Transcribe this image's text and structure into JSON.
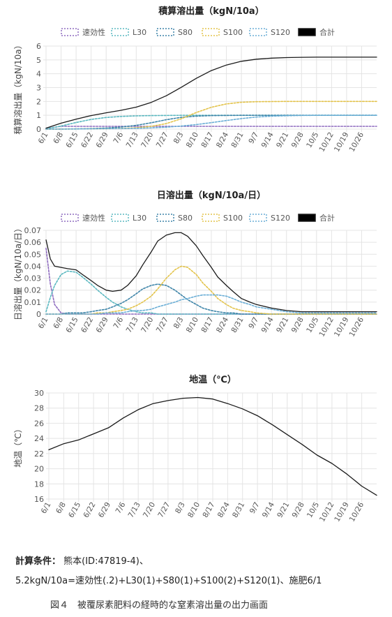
{
  "colors": {
    "速効性": "#8e6bbf",
    "L30": "#5ab8c0",
    "S80": "#3d84a8",
    "S100": "#e3c34a",
    "S120": "#6aaed6",
    "合計": "#1a1a1a",
    "grid": "#e4e4e4",
    "axis_text": "#555555"
  },
  "chart_data": [
    {
      "type": "line",
      "title": "積算溶出量（kgN/10a）",
      "ylabel": "積算溶出量（kgN/10a）",
      "ylim": [
        0,
        6
      ],
      "yticks": [
        "0",
        "1",
        "2",
        "3",
        "4",
        "5",
        "6"
      ],
      "categories": [
        "6/1",
        "6/8",
        "6/15",
        "6/22",
        "6/29",
        "7/6",
        "7/13",
        "7/20",
        "7/27",
        "8/3",
        "8/10",
        "8/17",
        "8/24",
        "8/31",
        "9/7",
        "9/14",
        "9/21",
        "9/28",
        "10/5",
        "10/12",
        "10/19",
        "10/26"
      ],
      "legend": [
        "速効性",
        "L30",
        "S80",
        "S100",
        "S120",
        "合計"
      ],
      "x": [
        0,
        7,
        14,
        21,
        28,
        35,
        42,
        49,
        56,
        63,
        70,
        77,
        84,
        91,
        98,
        105,
        112,
        119,
        126,
        133,
        140,
        147,
        154
      ],
      "series": [
        {
          "name": "速効性",
          "values": [
            0.05,
            0.2,
            0.2,
            0.2,
            0.2,
            0.2,
            0.2,
            0.2,
            0.2,
            0.2,
            0.2,
            0.2,
            0.2,
            0.2,
            0.2,
            0.2,
            0.2,
            0.2,
            0.2,
            0.2,
            0.2,
            0.2,
            0.2
          ]
        },
        {
          "name": "L30",
          "values": [
            0.02,
            0.22,
            0.48,
            0.7,
            0.84,
            0.92,
            0.96,
            0.98,
            0.99,
            1.0,
            1.0,
            1.0,
            1.0,
            1.0,
            1.0,
            1.0,
            1.0,
            1.0,
            1.0,
            1.0,
            1.0,
            1.0,
            1.0
          ]
        },
        {
          "name": "S80",
          "values": [
            0,
            0.01,
            0.02,
            0.04,
            0.08,
            0.15,
            0.27,
            0.46,
            0.68,
            0.85,
            0.94,
            0.98,
            0.99,
            1.0,
            1.0,
            1.0,
            1.0,
            1.0,
            1.0,
            1.0,
            1.0,
            1.0,
            1.0
          ]
        },
        {
          "name": "S100",
          "values": [
            0,
            0,
            0.01,
            0.02,
            0.03,
            0.05,
            0.1,
            0.2,
            0.4,
            0.75,
            1.2,
            1.58,
            1.82,
            1.94,
            1.98,
            1.99,
            2.0,
            2.0,
            2.0,
            2.0,
            2.0,
            2.0,
            2.0
          ]
        },
        {
          "name": "S120",
          "values": [
            0,
            0,
            0.01,
            0.02,
            0.03,
            0.04,
            0.06,
            0.09,
            0.14,
            0.22,
            0.33,
            0.47,
            0.62,
            0.76,
            0.87,
            0.94,
            0.97,
            0.99,
            1.0,
            1.0,
            1.0,
            1.0,
            1.0
          ]
        },
        {
          "name": "合計",
          "values": [
            0.07,
            0.43,
            0.72,
            0.98,
            1.18,
            1.36,
            1.59,
            1.93,
            2.41,
            3.02,
            3.67,
            4.23,
            4.63,
            4.9,
            5.05,
            5.13,
            5.17,
            5.19,
            5.2,
            5.2,
            5.2,
            5.2,
            5.2
          ]
        }
      ]
    },
    {
      "type": "line",
      "title": "日溶出量（kgN/10a/日）",
      "ylabel": "日溶出量（kgN/10a/日）",
      "ylim": [
        0,
        0.07
      ],
      "yticks": [
        "0",
        "0.01",
        "0.02",
        "0.03",
        "0.04",
        "0.05",
        "0.06",
        "0.07"
      ],
      "categories": [
        "6/1",
        "6/8",
        "6/15",
        "6/22",
        "6/29",
        "7/6",
        "7/13",
        "7/20",
        "7/27",
        "8/3",
        "8/10",
        "8/17",
        "8/24",
        "8/31",
        "9/7",
        "9/14",
        "9/21",
        "9/28",
        "10/5",
        "10/12",
        "10/19",
        "10/26"
      ],
      "legend": [
        "速効性",
        "L30",
        "S80",
        "S100",
        "S120",
        "合計"
      ],
      "x": [
        0,
        2,
        4,
        7,
        10,
        14,
        17,
        21,
        24,
        28,
        31,
        35,
        38,
        42,
        45,
        49,
        52,
        56,
        60,
        63,
        66,
        70,
        73,
        77,
        80,
        84,
        87,
        91,
        95,
        98,
        105,
        112,
        119,
        126,
        133,
        140,
        147,
        154
      ],
      "series": [
        {
          "name": "速効性",
          "values": [
            0.055,
            0.025,
            0.008,
            0.001,
            0,
            0,
            0,
            0,
            0,
            0,
            0,
            0,
            0,
            0,
            0,
            0,
            0,
            0,
            0,
            0,
            0,
            0,
            0,
            0,
            0,
            0,
            0,
            0,
            0,
            0,
            0,
            0,
            0,
            0,
            0,
            0,
            0,
            0
          ]
        },
        {
          "name": "L30",
          "values": [
            0.002,
            0.014,
            0.024,
            0.033,
            0.036,
            0.035,
            0.031,
            0.025,
            0.02,
            0.014,
            0.01,
            0.006,
            0.004,
            0.002,
            0.001,
            0.001,
            0,
            0,
            0,
            0,
            0,
            0,
            0,
            0,
            0,
            0,
            0,
            0,
            0,
            0,
            0,
            0,
            0,
            0,
            0,
            0,
            0,
            0
          ]
        },
        {
          "name": "S80",
          "values": [
            0,
            0,
            0,
            0,
            0.001,
            0.001,
            0.001,
            0.002,
            0.003,
            0.004,
            0.006,
            0.009,
            0.012,
            0.017,
            0.021,
            0.024,
            0.025,
            0.024,
            0.02,
            0.016,
            0.012,
            0.008,
            0.005,
            0.003,
            0.002,
            0.001,
            0.001,
            0,
            0,
            0,
            0,
            0,
            0,
            0,
            0,
            0,
            0,
            0
          ]
        },
        {
          "name": "S100",
          "values": [
            0,
            0,
            0,
            0,
            0,
            0,
            0,
            0,
            0.001,
            0.001,
            0.002,
            0.003,
            0.004,
            0.007,
            0.01,
            0.015,
            0.021,
            0.03,
            0.037,
            0.04,
            0.039,
            0.033,
            0.026,
            0.019,
            0.013,
            0.008,
            0.005,
            0.003,
            0.002,
            0.001,
            0,
            0,
            0,
            0,
            0,
            0,
            0,
            0
          ]
        },
        {
          "name": "S120",
          "values": [
            0,
            0,
            0,
            0,
            0,
            0,
            0,
            0,
            0,
            0.001,
            0.001,
            0.001,
            0.002,
            0.003,
            0.003,
            0.004,
            0.006,
            0.008,
            0.01,
            0.012,
            0.013,
            0.015,
            0.016,
            0.016,
            0.016,
            0.015,
            0.013,
            0.01,
            0.008,
            0.006,
            0.004,
            0.002,
            0.001,
            0.001,
            0.001,
            0.001,
            0.001,
            0.001
          ]
        },
        {
          "name": "合計",
          "values": [
            0.062,
            0.046,
            0.04,
            0.039,
            0.038,
            0.037,
            0.033,
            0.028,
            0.024,
            0.02,
            0.019,
            0.02,
            0.024,
            0.032,
            0.041,
            0.052,
            0.061,
            0.066,
            0.068,
            0.068,
            0.065,
            0.057,
            0.049,
            0.039,
            0.031,
            0.024,
            0.019,
            0.013,
            0.01,
            0.008,
            0.005,
            0.003,
            0.002,
            0.002,
            0.002,
            0.002,
            0.002,
            0.002
          ]
        }
      ]
    },
    {
      "type": "line",
      "title": "地温（℃）",
      "ylabel": "地温（℃）",
      "ylim": [
        16,
        30
      ],
      "yticks": [
        "16",
        "18",
        "20",
        "22",
        "24",
        "26",
        "28",
        "30"
      ],
      "categories": [
        "6/1",
        "6/8",
        "6/15",
        "6/22",
        "6/29",
        "7/6",
        "7/13",
        "7/20",
        "7/27",
        "8/3",
        "8/10",
        "8/17",
        "8/24",
        "8/31",
        "9/7",
        "9/14",
        "9/21",
        "9/28",
        "10/5",
        "10/12",
        "10/19",
        "10/26"
      ],
      "legend": [],
      "x": [
        0,
        7,
        14,
        21,
        28,
        35,
        42,
        49,
        56,
        63,
        70,
        77,
        84,
        91,
        98,
        105,
        112,
        119,
        126,
        133,
        140,
        147,
        154
      ],
      "series": [
        {
          "name": "",
          "values": [
            22.5,
            23.3,
            23.8,
            24.6,
            25.4,
            26.7,
            27.8,
            28.6,
            29.0,
            29.3,
            29.4,
            29.2,
            28.6,
            27.9,
            27.0,
            25.8,
            24.5,
            23.2,
            21.8,
            20.7,
            19.3,
            17.7,
            16.5
          ]
        }
      ]
    }
  ],
  "footer": {
    "cond_label": "計算条件：",
    "cond_location": " 熊本(ID:47819-4)、",
    "cond_formula": "5.2kgN/10a=速効性(.2)+L30(1)+S80(1)+S100(2)+S120(1)、施肥6/1",
    "caption": "図４　被覆尿素肥料の経時的な窒素溶出量の出力画面"
  }
}
